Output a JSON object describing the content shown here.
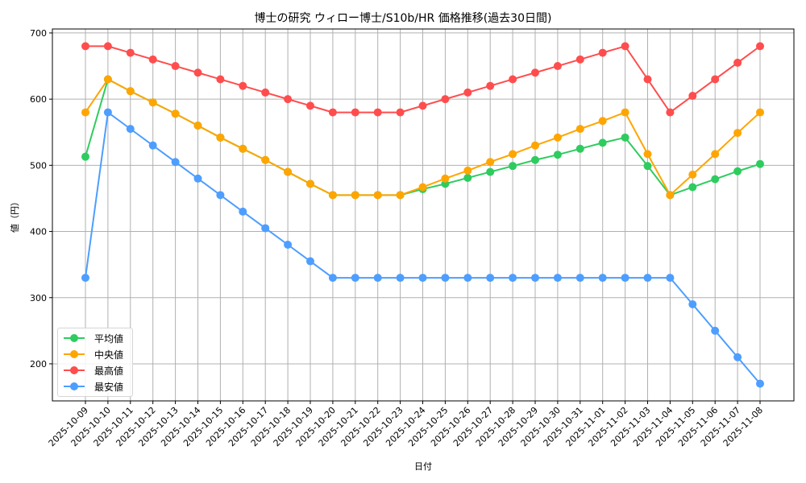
{
  "chart_data": {
    "type": "line",
    "title": "博士の研究 ウィロー博士/S10b/HR 価格推移(過去30日間)",
    "xlabel": "日付",
    "ylabel": "値（円）",
    "ylim": [
      144,
      706
    ],
    "yticks": [
      200,
      300,
      400,
      500,
      600,
      700
    ],
    "grid": true,
    "legend_position": "lower left",
    "categories": [
      "2025-10-09",
      "2025-10-10",
      "2025-10-11",
      "2025-10-12",
      "2025-10-13",
      "2025-10-14",
      "2025-10-15",
      "2025-10-16",
      "2025-10-17",
      "2025-10-18",
      "2025-10-19",
      "2025-10-20",
      "2025-10-21",
      "2025-10-22",
      "2025-10-23",
      "2025-10-24",
      "2025-10-25",
      "2025-10-26",
      "2025-10-27",
      "2025-10-28",
      "2025-10-29",
      "2025-10-30",
      "2025-10-31",
      "2025-11-01",
      "2025-11-02",
      "2025-11-03",
      "2025-11-04",
      "2025-11-05",
      "2025-11-06",
      "2025-11-07",
      "2025-11-08"
    ],
    "series": [
      {
        "name": "平均値",
        "color": "#2ecc5f",
        "values": [
          513,
          630,
          612,
          595,
          578,
          560,
          542,
          525,
          508,
          490,
          472,
          455,
          455,
          455,
          455,
          464,
          472,
          481,
          490,
          499,
          508,
          516,
          525,
          534,
          542,
          499,
          455,
          467,
          479,
          491,
          502
        ]
      },
      {
        "name": "中央値",
        "color": "#ffa500",
        "values": [
          580,
          630,
          612,
          595,
          578,
          560,
          542,
          525,
          508,
          490,
          472,
          455,
          455,
          455,
          455,
          467,
          480,
          492,
          505,
          517,
          530,
          542,
          555,
          567,
          580,
          517,
          455,
          486,
          517,
          549,
          580
        ]
      },
      {
        "name": "最高値",
        "color": "#ff4d4d",
        "values": [
          680,
          680,
          670,
          660,
          650,
          640,
          630,
          620,
          610,
          600,
          590,
          580,
          580,
          580,
          580,
          590,
          600,
          610,
          620,
          630,
          640,
          650,
          660,
          670,
          680,
          630,
          580,
          605,
          630,
          655,
          680
        ]
      },
      {
        "name": "最安値",
        "color": "#4d9eff",
        "values": [
          330,
          580,
          555,
          530,
          505,
          480,
          455,
          430,
          405,
          380,
          355,
          330,
          330,
          330,
          330,
          330,
          330,
          330,
          330,
          330,
          330,
          330,
          330,
          330,
          330,
          330,
          330,
          290,
          250,
          210,
          170
        ]
      }
    ]
  },
  "legend": {
    "items": [
      {
        "label": "平均値",
        "color": "#2ecc5f"
      },
      {
        "label": "中央値",
        "color": "#ffa500"
      },
      {
        "label": "最高値",
        "color": "#ff4d4d"
      },
      {
        "label": "最安値",
        "color": "#4d9eff"
      }
    ]
  }
}
